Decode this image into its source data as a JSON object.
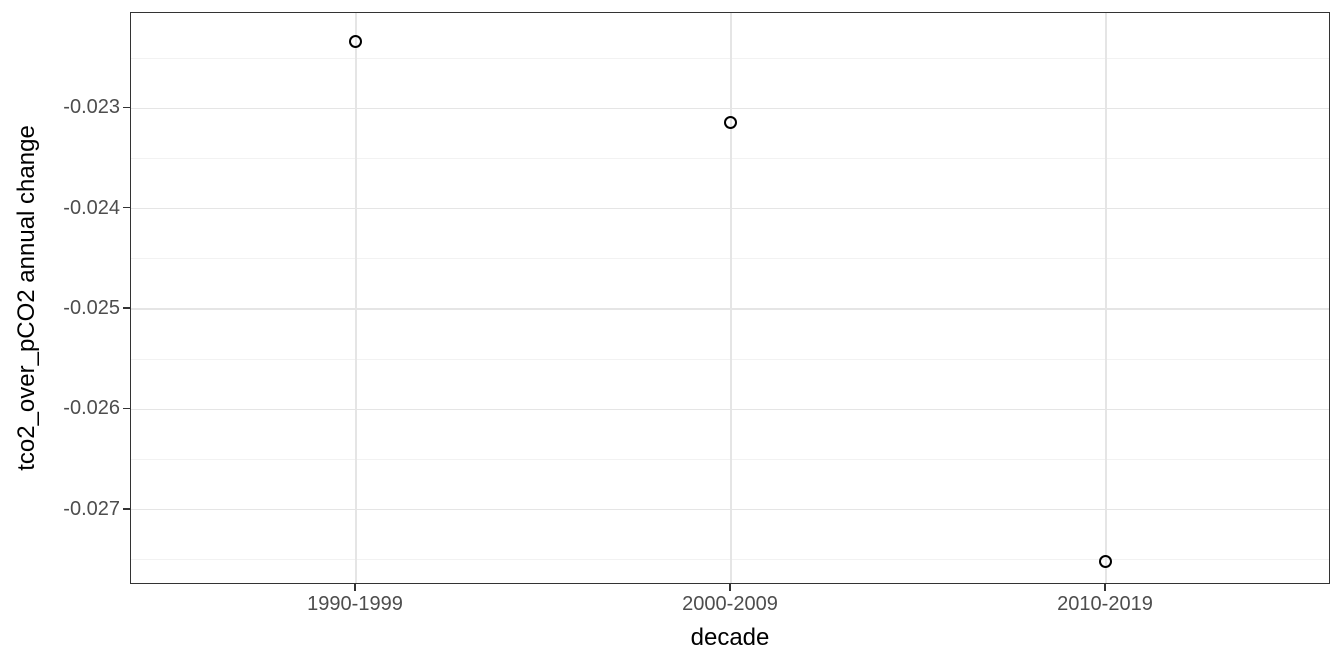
{
  "chart_data": {
    "type": "scatter",
    "title": "",
    "xlabel": "decade",
    "ylabel": "tco2_over_pCO2 annual change",
    "categories": [
      "1990-1999",
      "2000-2009",
      "2010-2019"
    ],
    "series": [
      {
        "name": "tco2_over_pCO2 annual change",
        "values": [
          -0.02234,
          -0.02314,
          -0.02752
        ]
      }
    ],
    "ylim": [
      -0.02775,
      -0.02205
    ],
    "yticks": [
      -0.023,
      -0.024,
      -0.025,
      -0.026,
      -0.027
    ],
    "ytick_labels": [
      "-0.023",
      "-0.024",
      "-0.025",
      "-0.026",
      "-0.027"
    ],
    "yminor_ticks": [
      -0.0225,
      -0.0235,
      -0.0245,
      -0.0255,
      -0.0265,
      -0.0275
    ],
    "grid": true,
    "legend": false,
    "marker": {
      "shape": "open-circle",
      "color": "#000000"
    },
    "style": {
      "background": "#ffffff",
      "panel_border_color": "#333333",
      "grid_major_color": "#e5e5e5",
      "grid_minor_color": "#f2f2f2",
      "tick_label_color": "#4d4d4d",
      "axis_title_color": "#000000"
    }
  }
}
